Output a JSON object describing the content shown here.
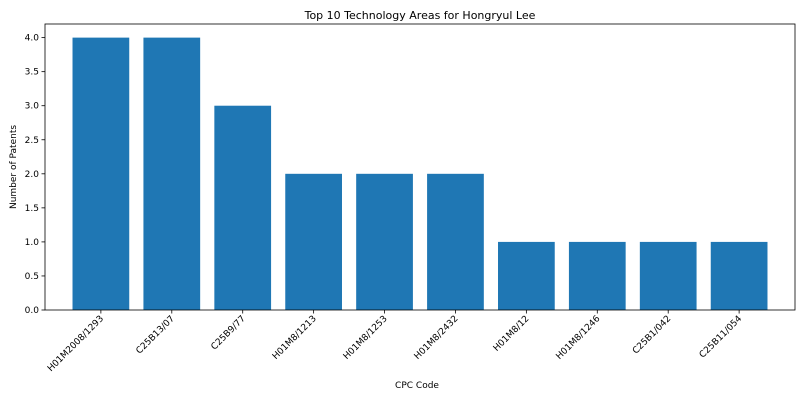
{
  "chart_data": {
    "type": "bar",
    "title": "Top 10 Technology Areas for Hongryul Lee",
    "xlabel": "CPC Code",
    "ylabel": "Number of Patents",
    "categories": [
      "H01M2008/1293",
      "C25B13/07",
      "C25B9/77",
      "H01M8/1213",
      "H01M8/1253",
      "H01M8/2432",
      "H01M8/12",
      "H01M8/1246",
      "C25B1/042",
      "C25B11/054"
    ],
    "values": [
      4,
      4,
      3,
      2,
      2,
      2,
      1,
      1,
      1,
      1
    ],
    "ylim": [
      0,
      4.2
    ],
    "yticks": [
      "0.0",
      "0.5",
      "1.0",
      "1.5",
      "2.0",
      "2.5",
      "3.0",
      "3.5",
      "4.0"
    ],
    "bar_color": "#1f77b4",
    "grid": false,
    "legend": "none"
  }
}
